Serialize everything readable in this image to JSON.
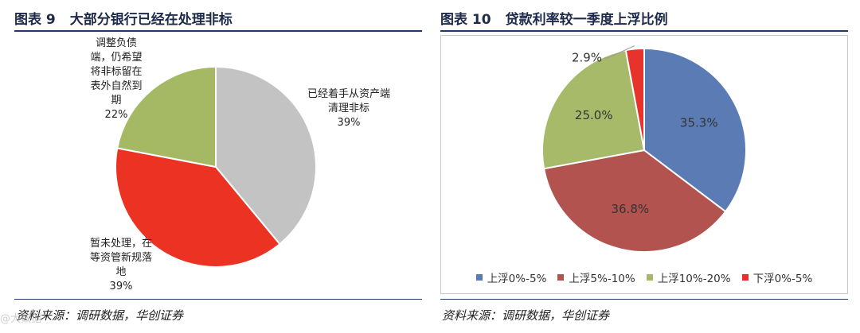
{
  "figure_left": {
    "number": "图表 9",
    "title": "大部分银行已经在处理非标",
    "source": "资料来源：调研数据，华创证券"
  },
  "figure_right": {
    "number": "图表 10",
    "title": "贷款利率较一季度上浮比例",
    "source": "资料来源：调研数据，华创证券"
  },
  "chart_data": [
    {
      "type": "pie",
      "title": "大部分银行已经在处理非标",
      "slices": [
        {
          "label": "已经着手从资产端清理非标",
          "value": 39,
          "value_label": "39%",
          "color": "#c3c3c3"
        },
        {
          "label": "暂未处理，在等资管新规落地",
          "value": 39,
          "value_label": "39%",
          "color": "#ec3323"
        },
        {
          "label": "调整负债端，仍希望将非标留在表外自然到期",
          "value": 22,
          "value_label": "22%",
          "color": "#a5b965"
        }
      ],
      "start": "12 o'clock",
      "direction": "clockwise",
      "legend": "none"
    },
    {
      "type": "pie",
      "title": "贷款利率较一季度上浮比例",
      "slices": [
        {
          "label": "上浮0%-5%",
          "value": 35.3,
          "value_label": "35.3%",
          "color": "#5b7bb4"
        },
        {
          "label": "上浮5%-10%",
          "value": 36.8,
          "value_label": "36.8%",
          "color": "#b2534f"
        },
        {
          "label": "上浮10%-20%",
          "value": 25.0,
          "value_label": "25.0%",
          "color": "#a6ba6a"
        },
        {
          "label": "下浮0%-5%",
          "value": 2.9,
          "value_label": "2.9%",
          "color": "#e7332b"
        }
      ],
      "start": "12 o'clock",
      "direction": "clockwise",
      "legend": "bottom"
    }
  ],
  "watermark": "@大数据"
}
